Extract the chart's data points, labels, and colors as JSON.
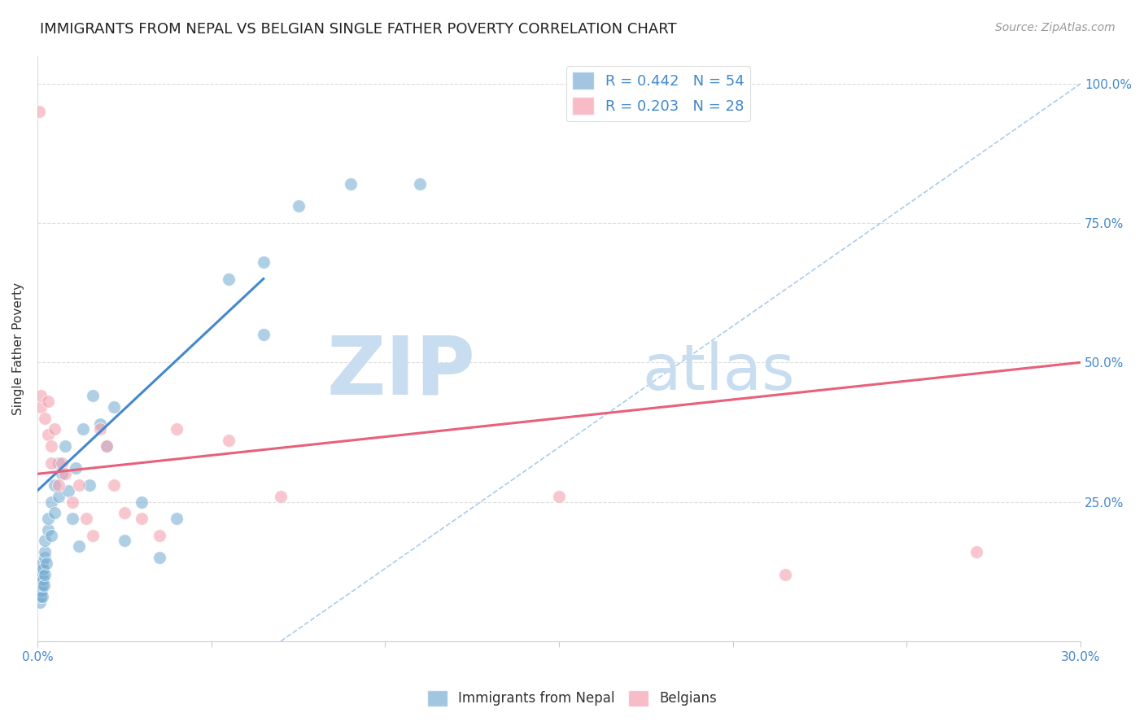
{
  "title": "IMMIGRANTS FROM NEPAL VS BELGIAN SINGLE FATHER POVERTY CORRELATION CHART",
  "source": "Source: ZipAtlas.com",
  "ylabel": "Single Father Poverty",
  "y_tick_labels": [
    "100.0%",
    "75.0%",
    "50.0%",
    "25.0%"
  ],
  "y_tick_values": [
    1.0,
    0.75,
    0.5,
    0.25
  ],
  "xlim": [
    0.0,
    0.3
  ],
  "ylim": [
    0.0,
    1.05
  ],
  "legend_blue_r": "R = 0.442",
  "legend_blue_n": "N = 54",
  "legend_pink_r": "R = 0.203",
  "legend_pink_n": "N = 28",
  "legend_label_blue": "Immigrants from Nepal",
  "legend_label_pink": "Belgians",
  "blue_color": "#7BAFD4",
  "pink_color": "#F4A0B0",
  "blue_trend_color": "#4488CC",
  "pink_trend_color": "#E8607A",
  "blue_scatter": {
    "x": [
      0.0005,
      0.0006,
      0.0007,
      0.0008,
      0.0009,
      0.001,
      0.001,
      0.001,
      0.001,
      0.0012,
      0.0012,
      0.0013,
      0.0013,
      0.0014,
      0.0015,
      0.0015,
      0.0016,
      0.0017,
      0.0018,
      0.002,
      0.002,
      0.002,
      0.0022,
      0.0025,
      0.003,
      0.003,
      0.004,
      0.004,
      0.005,
      0.005,
      0.006,
      0.006,
      0.007,
      0.008,
      0.009,
      0.01,
      0.011,
      0.012,
      0.013,
      0.015,
      0.016,
      0.018,
      0.02,
      0.022,
      0.025,
      0.03,
      0.035,
      0.04,
      0.055,
      0.065,
      0.065,
      0.075,
      0.09,
      0.11
    ],
    "y": [
      0.1,
      0.08,
      0.09,
      0.07,
      0.11,
      0.08,
      0.09,
      0.1,
      0.12,
      0.09,
      0.11,
      0.13,
      0.08,
      0.1,
      0.12,
      0.14,
      0.11,
      0.13,
      0.1,
      0.15,
      0.16,
      0.12,
      0.18,
      0.14,
      0.2,
      0.22,
      0.25,
      0.19,
      0.28,
      0.23,
      0.32,
      0.26,
      0.3,
      0.35,
      0.27,
      0.22,
      0.31,
      0.17,
      0.38,
      0.28,
      0.44,
      0.39,
      0.35,
      0.42,
      0.18,
      0.25,
      0.15,
      0.22,
      0.65,
      0.55,
      0.68,
      0.78,
      0.82,
      0.82
    ]
  },
  "pink_scatter": {
    "x": [
      0.0005,
      0.001,
      0.001,
      0.002,
      0.003,
      0.003,
      0.004,
      0.004,
      0.005,
      0.006,
      0.007,
      0.008,
      0.01,
      0.012,
      0.014,
      0.016,
      0.018,
      0.02,
      0.022,
      0.025,
      0.03,
      0.035,
      0.04,
      0.055,
      0.07,
      0.15,
      0.215,
      0.27
    ],
    "y": [
      0.95,
      0.42,
      0.44,
      0.4,
      0.37,
      0.43,
      0.35,
      0.32,
      0.38,
      0.28,
      0.32,
      0.3,
      0.25,
      0.28,
      0.22,
      0.19,
      0.38,
      0.35,
      0.28,
      0.23,
      0.22,
      0.19,
      0.38,
      0.36,
      0.26,
      0.26,
      0.12,
      0.16
    ]
  },
  "blue_trend_x": [
    0.0,
    0.065
  ],
  "blue_trend_y": [
    0.27,
    0.65
  ],
  "pink_trend_x": [
    0.0,
    0.3
  ],
  "pink_trend_y": [
    0.3,
    0.5
  ],
  "diag_line_x": [
    0.07,
    0.3
  ],
  "diag_line_y": [
    0.0,
    1.0
  ],
  "diag_color": "#AACCEE",
  "watermark_zip": "ZIP",
  "watermark_atlas": "atlas",
  "watermark_color_zip": "#C8DDEF",
  "watermark_color_atlas": "#C8DDEF",
  "background_color": "#FFFFFF",
  "title_fontsize": 13,
  "axis_label_fontsize": 11,
  "tick_label_fontsize": 11,
  "source_fontsize": 10,
  "legend_fontsize": 13
}
